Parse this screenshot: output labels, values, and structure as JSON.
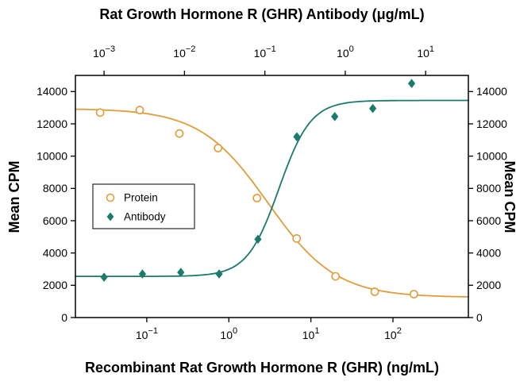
{
  "colors": {
    "protein": "#DF9E3B",
    "antibody": "#1A7A6C",
    "axis": "#000000",
    "background": "#FFFFFF"
  },
  "chart_data": {
    "type": "scatter",
    "x_scale": "log",
    "grid": "off",
    "top_axis": {
      "label": "Rat Growth Hormone R (GHR) Antibody (μg/mL)",
      "min": 0.00044,
      "max": 34,
      "tick_exponents": [
        -3,
        -2,
        -1,
        0,
        1
      ]
    },
    "bottom_axis": {
      "label": "Recombinant Rat Growth Hormone R (GHR) (ng/mL)",
      "min": 0.0135,
      "max": 830,
      "tick_exponents": [
        -1,
        0,
        1,
        2
      ]
    },
    "left_axis": {
      "label": "Mean CPM"
    },
    "right_axis": {
      "label": "Mean CPM"
    },
    "y_axis": {
      "min": 0,
      "max": 15000,
      "ticks": [
        0,
        2000,
        4000,
        6000,
        8000,
        10000,
        12000,
        14000
      ]
    },
    "legend": {
      "position": "left-center",
      "entries": [
        "Protein",
        "Antibody"
      ]
    },
    "series": [
      {
        "name": "Protein",
        "axis": "bottom",
        "units": "ng/mL",
        "marker": "open-circle",
        "color": "#DF9E3B",
        "x": [
          0.027,
          0.082,
          0.25,
          0.74,
          2.2,
          6.7,
          20,
          60,
          180
        ],
        "y": [
          12700,
          12850,
          11400,
          10500,
          7400,
          4900,
          2550,
          1600,
          1450
        ],
        "fit": {
          "shape": "decreasing",
          "top": 12950,
          "bottom": 1250,
          "ec50": 3.0,
          "hill": 1.05
        }
      },
      {
        "name": "Antibody",
        "axis": "top",
        "units": "μg/mL",
        "marker": "filled-diamond",
        "color": "#1A7A6C",
        "x": [
          0.001,
          0.003,
          0.009,
          0.027,
          0.082,
          0.25,
          0.74,
          2.2,
          6.7
        ],
        "y": [
          2500,
          2700,
          2800,
          2700,
          4850,
          11200,
          12450,
          12950,
          14500
        ],
        "fit": {
          "shape": "increasing",
          "top": 13450,
          "bottom": 2550,
          "ec50": 0.15,
          "hill": 2.2
        }
      }
    ]
  }
}
